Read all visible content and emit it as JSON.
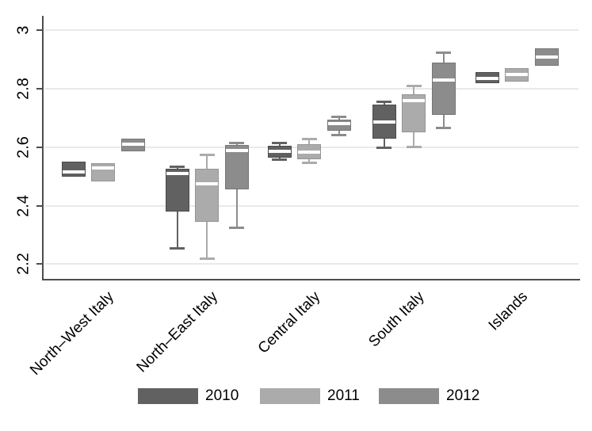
{
  "chart_data": {
    "type": "boxplot",
    "orientation": "vertical",
    "title": "",
    "xlabel": "",
    "ylabel": "",
    "grid": true,
    "legend_position": "bottom",
    "median_color": "#ffffff",
    "categories": [
      "North–West Italy",
      "North–East Italy",
      "Central Italy",
      "South Italy",
      "Islands"
    ],
    "y_ticks": [
      {
        "label": "3",
        "value": 3.0
      },
      {
        "label": "2.8",
        "value": 2.8
      },
      {
        "label": "2.6",
        "value": 2.6
      },
      {
        "label": "2.4",
        "value": 2.4
      },
      {
        "label": "2.2",
        "value": 2.2
      }
    ],
    "ylim": [
      2.149,
      3.05
    ],
    "series": [
      {
        "name": "2010",
        "color": "#616161",
        "boxes": [
          {
            "min": 2.5,
            "q1": 2.5,
            "median": 2.515,
            "q3": 2.55,
            "max": 2.55
          },
          {
            "min": 2.255,
            "q1": 2.38,
            "median": 2.51,
            "q3": 2.525,
            "max": 2.535
          },
          {
            "min": 2.558,
            "q1": 2.564,
            "median": 2.585,
            "q3": 2.606,
            "max": 2.615
          },
          {
            "min": 2.6,
            "q1": 2.63,
            "median": 2.685,
            "q3": 2.745,
            "max": 2.756
          },
          {
            "min": 2.82,
            "q1": 2.82,
            "median": 2.835,
            "q3": 2.856,
            "max": 2.856
          }
        ]
      },
      {
        "name": "2011",
        "color": "#ababab",
        "boxes": [
          {
            "min": 2.484,
            "q1": 2.484,
            "median": 2.529,
            "q3": 2.545,
            "max": 2.545
          },
          {
            "min": 2.22,
            "q1": 2.344,
            "median": 2.475,
            "q3": 2.527,
            "max": 2.575
          },
          {
            "min": 2.549,
            "q1": 2.559,
            "median": 2.584,
            "q3": 2.611,
            "max": 2.629
          },
          {
            "min": 2.602,
            "q1": 2.652,
            "median": 2.76,
            "q3": 2.78,
            "max": 2.81
          },
          {
            "min": 2.824,
            "q1": 2.824,
            "median": 2.849,
            "q3": 2.871,
            "max": 2.871
          }
        ]
      },
      {
        "name": "2012",
        "color": "#8c8c8c",
        "boxes": [
          {
            "min": 2.585,
            "q1": 2.585,
            "median": 2.611,
            "q3": 2.63,
            "max": 2.63
          },
          {
            "min": 2.326,
            "q1": 2.457,
            "median": 2.589,
            "q3": 2.607,
            "max": 2.616
          },
          {
            "min": 2.644,
            "q1": 2.656,
            "median": 2.681,
            "q3": 2.694,
            "max": 2.705
          },
          {
            "min": 2.667,
            "q1": 2.712,
            "median": 2.83,
            "q3": 2.891,
            "max": 2.925
          },
          {
            "min": 2.88,
            "q1": 2.88,
            "median": 2.91,
            "q3": 2.94,
            "max": 2.94
          }
        ]
      }
    ]
  },
  "colors": {
    "axis": "#4d4d4d",
    "grid": "#e9e9e9",
    "background": "#ffffff",
    "text": "#000000"
  }
}
